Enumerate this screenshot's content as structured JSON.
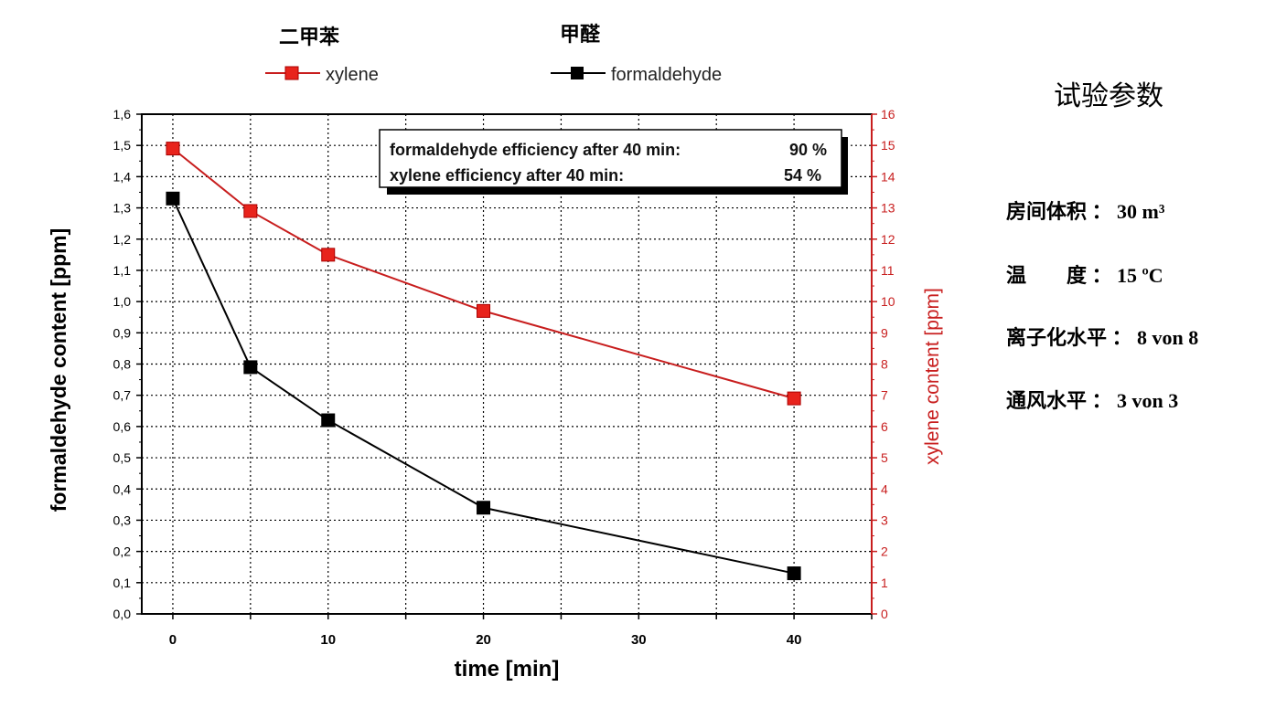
{
  "chart_data": {
    "type": "line",
    "x": [
      0,
      5,
      10,
      20,
      40
    ],
    "xlabel": "time [min]",
    "xlim": [
      -2,
      45
    ],
    "xticks": [
      0,
      10,
      20,
      30,
      40
    ],
    "ylabel_left": "formaldehyde content [ppm]",
    "ylim_left": [
      0,
      1.6
    ],
    "yticks_left": [
      "0,0",
      "0,1",
      "0,2",
      "0,3",
      "0,4",
      "0,5",
      "0,6",
      "0,7",
      "0,8",
      "0,9",
      "1,0",
      "1,1",
      "1,2",
      "1,3",
      "1,4",
      "1,5",
      "1,6"
    ],
    "ylabel_right": "xylene content [ppm]",
    "ylim_right": [
      0,
      16
    ],
    "yticks_right": [
      "0",
      "1",
      "2",
      "3",
      "4",
      "5",
      "6",
      "7",
      "8",
      "9",
      "10",
      "11",
      "12",
      "13",
      "14",
      "15",
      "16"
    ],
    "grid": true,
    "series": [
      {
        "name": "xylene",
        "chinese_name": "二甲苯",
        "axis": "right",
        "color": "#c81e1e",
        "marker_color": "#e8231c",
        "values": [
          14.9,
          12.9,
          11.5,
          9.7,
          6.9
        ]
      },
      {
        "name": "formaldehyde",
        "chinese_name": "甲醛",
        "axis": "left",
        "color": "#000000",
        "marker_color": "#000000",
        "values": [
          1.33,
          0.79,
          0.62,
          0.34,
          0.13
        ]
      }
    ],
    "legend_placement": "top",
    "annotation": {
      "line1_label": "formaldehyde efficiency after 40 min:",
      "line1_value": "90 %",
      "line2_label": "xylene efficiency after  40 min:",
      "line2_value": "54 %"
    }
  },
  "params": {
    "title": "试验参数",
    "rows": [
      "房间体积 ：  30 m³",
      "温　　度 ：  15 ºC",
      "离子化水平 ：  8 von 8",
      "通风水平 ：  3 von 3"
    ]
  }
}
